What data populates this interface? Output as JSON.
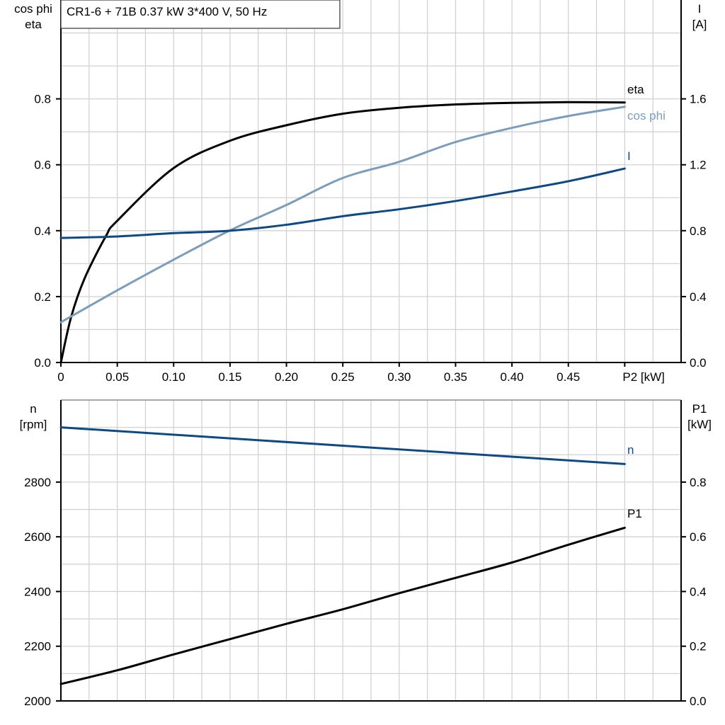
{
  "title": "CR1-6 + 71B   0.37 kW   3*400 V, 50 Hz",
  "chart_data": [
    {
      "type": "line",
      "xlabel": "P2 [kW]",
      "xlim": [
        0,
        0.55
      ],
      "x_ticks": [
        "0",
        "0.05",
        "0.10",
        "0.15",
        "0.20",
        "0.25",
        "0.30",
        "0.35",
        "0.40",
        "0.45"
      ],
      "ylabel_left": [
        "cos phi",
        "eta"
      ],
      "ylim_left": [
        0,
        1.1
      ],
      "y_ticks_left": [
        "0.0",
        "0.2",
        "0.4",
        "0.6",
        "0.8"
      ],
      "ylabel_right": [
        "I",
        "[A]"
      ],
      "ylim_right": [
        0,
        2.2
      ],
      "y_ticks_right": [
        "0.0",
        "0.4",
        "0.8",
        "1.2",
        "1.6"
      ],
      "grid": true,
      "series": [
        {
          "name": "eta",
          "axis": "left",
          "color": "#000000",
          "x": [
            0,
            0.009,
            0.021,
            0.04,
            0.05,
            0.1,
            0.15,
            0.2,
            0.25,
            0.3,
            0.35,
            0.4,
            0.45,
            0.5
          ],
          "y": [
            0,
            0.137,
            0.255,
            0.384,
            0.43,
            0.59,
            0.673,
            0.72,
            0.755,
            0.773,
            0.783,
            0.788,
            0.79,
            0.789
          ]
        },
        {
          "name": "cos phi",
          "axis": "left",
          "color": "#7b9dbd",
          "x": [
            0,
            0.05,
            0.1,
            0.15,
            0.2,
            0.25,
            0.3,
            0.35,
            0.4,
            0.45,
            0.5
          ],
          "y": [
            0.122,
            0.219,
            0.312,
            0.401,
            0.478,
            0.56,
            0.609,
            0.669,
            0.712,
            0.748,
            0.776
          ]
        },
        {
          "name": "I",
          "axis": "right",
          "color": "#0d4a85",
          "x": [
            0,
            0.05,
            0.1,
            0.15,
            0.2,
            0.25,
            0.3,
            0.35,
            0.4,
            0.45,
            0.5
          ],
          "y": [
            0.756,
            0.765,
            0.785,
            0.8,
            0.836,
            0.888,
            0.93,
            0.98,
            1.038,
            1.1,
            1.177
          ]
        }
      ]
    },
    {
      "type": "line",
      "xlim": [
        0,
        0.55
      ],
      "ylabel_left": [
        "n",
        "[rpm]"
      ],
      "ylim_left": [
        2000,
        3100
      ],
      "y_ticks_left": [
        "2000",
        "2200",
        "2400",
        "2600",
        "2800"
      ],
      "ylabel_right": [
        "P1",
        "[kW]"
      ],
      "ylim_right": [
        0,
        1.1
      ],
      "y_ticks_right": [
        "0.0",
        "0.2",
        "0.4",
        "0.6",
        "0.8"
      ],
      "grid": true,
      "series": [
        {
          "name": "n",
          "axis": "left",
          "color": "#0d4a85",
          "x": [
            0,
            0.5
          ],
          "y": [
            3000,
            2866
          ]
        },
        {
          "name": "P1",
          "axis": "right",
          "color": "#000000",
          "x": [
            0,
            0.05,
            0.1,
            0.15,
            0.2,
            0.25,
            0.3,
            0.35,
            0.4,
            0.45,
            0.5
          ],
          "y": [
            0.062,
            0.112,
            0.17,
            0.226,
            0.282,
            0.335,
            0.394,
            0.45,
            0.506,
            0.571,
            0.633
          ]
        }
      ]
    }
  ]
}
